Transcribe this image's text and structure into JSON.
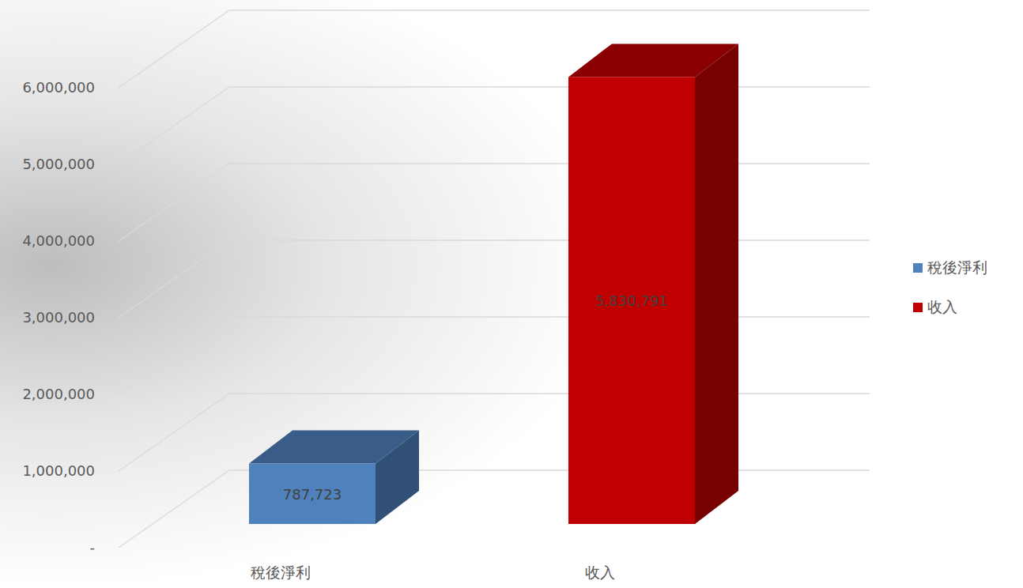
{
  "chart_data": {
    "type": "bar",
    "categories": [
      "稅後淨利",
      "收入"
    ],
    "series": [
      {
        "name": "稅後淨利",
        "color": "#4f81bd",
        "values": [
          787723,
          null
        ]
      },
      {
        "name": "收入",
        "color": "#c00000",
        "values": [
          null,
          5830791
        ]
      }
    ],
    "value_labels": [
      [
        "787,723",
        null
      ],
      [
        null,
        "5,830,791"
      ]
    ],
    "data_labels": true,
    "ylim": [
      0,
      6000000
    ],
    "yticks": [
      {
        "value": 0,
        "label": "-"
      },
      {
        "value": 1000000,
        "label": "1,000,000"
      },
      {
        "value": 2000000,
        "label": "2,000,000"
      },
      {
        "value": 3000000,
        "label": "3,000,000"
      },
      {
        "value": 4000000,
        "label": "4,000,000"
      },
      {
        "value": 5000000,
        "label": "5,000,000"
      },
      {
        "value": 6000000,
        "label": "6,000,000"
      }
    ],
    "grid": true,
    "legend": "right"
  }
}
